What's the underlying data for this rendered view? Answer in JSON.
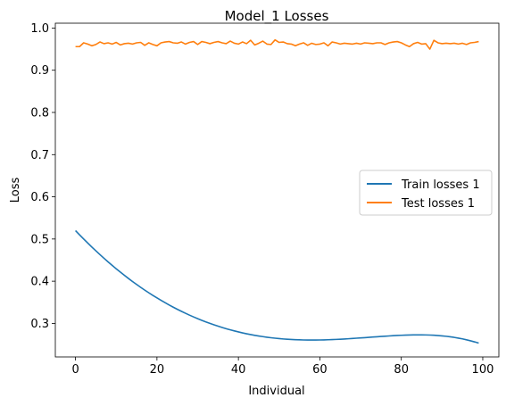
{
  "chart_data": {
    "type": "line",
    "title": "Model_1 Losses",
    "xlabel": "Individual",
    "ylabel": "Loss",
    "xlim": [
      -4.95,
      103.95
    ],
    "ylim": [
      0.2205,
      1.0115
    ],
    "xticks": [
      0,
      20,
      40,
      60,
      80,
      100
    ],
    "yticks": [
      0.3,
      0.4,
      0.5,
      0.6,
      0.7,
      0.8,
      0.9,
      1.0
    ],
    "xtick_labels": [
      "0",
      "20",
      "40",
      "60",
      "80",
      "100"
    ],
    "ytick_labels": [
      "0.3",
      "0.4",
      "0.5",
      "0.6",
      "0.7",
      "0.8",
      "0.9",
      "1.0"
    ],
    "grid": false,
    "legend_position": "center-right",
    "x": [
      0,
      1,
      2,
      3,
      4,
      5,
      6,
      7,
      8,
      9,
      10,
      11,
      12,
      13,
      14,
      15,
      16,
      17,
      18,
      19,
      20,
      21,
      22,
      23,
      24,
      25,
      26,
      27,
      28,
      29,
      30,
      31,
      32,
      33,
      34,
      35,
      36,
      37,
      38,
      39,
      40,
      41,
      42,
      43,
      44,
      45,
      46,
      47,
      48,
      49,
      50,
      51,
      52,
      53,
      54,
      55,
      56,
      57,
      58,
      59,
      60,
      61,
      62,
      63,
      64,
      65,
      66,
      67,
      68,
      69,
      70,
      71,
      72,
      73,
      74,
      75,
      76,
      77,
      78,
      79,
      80,
      81,
      82,
      83,
      84,
      85,
      86,
      87,
      88,
      89,
      90,
      91,
      92,
      93,
      94,
      95,
      96,
      97,
      98,
      99
    ],
    "series": [
      {
        "name": "Train losses 1",
        "color": "#1f77b4",
        "values": [
          0.52,
          0.5099,
          0.5001,
          0.4905,
          0.4811,
          0.472,
          0.463,
          0.4543,
          0.4458,
          0.4375,
          0.4294,
          0.4216,
          0.4139,
          0.4065,
          0.3993,
          0.3923,
          0.3855,
          0.3789,
          0.3725,
          0.3664,
          0.3604,
          0.3546,
          0.349,
          0.3436,
          0.3384,
          0.3334,
          0.3286,
          0.324,
          0.3195,
          0.3153,
          0.3112,
          0.3073,
          0.3035,
          0.3,
          0.2966,
          0.2934,
          0.2903,
          0.2874,
          0.2847,
          0.2822,
          0.2798,
          0.2775,
          0.2754,
          0.2735,
          0.2717,
          0.2701,
          0.2686,
          0.2672,
          0.266,
          0.2649,
          0.2639,
          0.2631,
          0.2624,
          0.2618,
          0.2613,
          0.261,
          0.2607,
          0.2606,
          0.2605,
          0.2606,
          0.2607,
          0.2609,
          0.2612,
          0.2616,
          0.262,
          0.2625,
          0.263,
          0.2636,
          0.2642,
          0.2649,
          0.2655,
          0.2662,
          0.2669,
          0.2676,
          0.2683,
          0.269,
          0.2696,
          0.2702,
          0.2708,
          0.2713,
          0.2718,
          0.2722,
          0.2725,
          0.2727,
          0.2728,
          0.2728,
          0.2726,
          0.2723,
          0.2719,
          0.2712,
          0.2704,
          0.2694,
          0.2682,
          0.2668,
          0.2651,
          0.2633,
          0.2611,
          0.2587,
          0.2561,
          0.2532
        ]
      },
      {
        "name": "Test losses 1",
        "color": "#ff7f0e",
        "values": [
          0.956,
          0.956,
          0.965,
          0.962,
          0.958,
          0.961,
          0.967,
          0.963,
          0.965,
          0.962,
          0.966,
          0.96,
          0.963,
          0.964,
          0.962,
          0.965,
          0.966,
          0.959,
          0.965,
          0.961,
          0.958,
          0.965,
          0.967,
          0.968,
          0.965,
          0.964,
          0.967,
          0.962,
          0.966,
          0.968,
          0.961,
          0.968,
          0.966,
          0.963,
          0.966,
          0.968,
          0.965,
          0.963,
          0.969,
          0.964,
          0.962,
          0.967,
          0.963,
          0.971,
          0.96,
          0.964,
          0.969,
          0.962,
          0.961,
          0.972,
          0.966,
          0.967,
          0.963,
          0.962,
          0.958,
          0.962,
          0.965,
          0.959,
          0.964,
          0.961,
          0.962,
          0.965,
          0.958,
          0.967,
          0.965,
          0.962,
          0.964,
          0.963,
          0.962,
          0.964,
          0.962,
          0.965,
          0.964,
          0.963,
          0.965,
          0.965,
          0.961,
          0.965,
          0.967,
          0.968,
          0.965,
          0.96,
          0.956,
          0.963,
          0.966,
          0.962,
          0.963,
          0.95,
          0.971,
          0.965,
          0.963,
          0.964,
          0.963,
          0.964,
          0.962,
          0.964,
          0.961,
          0.965,
          0.966,
          0.968
        ]
      }
    ]
  }
}
